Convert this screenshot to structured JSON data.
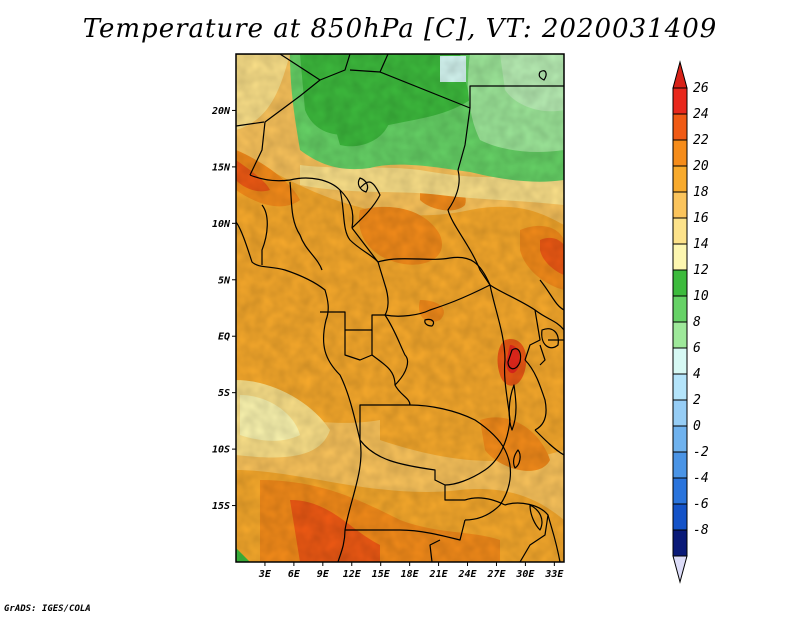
{
  "title": "Temperature at 850hPa [C], VT: 2020031409",
  "credit": "GrADS: IGES/COLA",
  "map": {
    "lat_range": [
      -20,
      25
    ],
    "lon_range": [
      0,
      34
    ],
    "lat_ticks": [
      {
        "value": 20,
        "label": "20N"
      },
      {
        "value": 15,
        "label": "15N"
      },
      {
        "value": 10,
        "label": "10N"
      },
      {
        "value": 5,
        "label": "5N"
      },
      {
        "value": 0,
        "label": "EQ"
      },
      {
        "value": -5,
        "label": "5S"
      },
      {
        "value": -10,
        "label": "10S"
      },
      {
        "value": -15,
        "label": "15S"
      }
    ],
    "lon_ticks": [
      {
        "value": 3,
        "label": "3E"
      },
      {
        "value": 6,
        "label": "6E"
      },
      {
        "value": 9,
        "label": "9E"
      },
      {
        "value": 12,
        "label": "12E"
      },
      {
        "value": 15,
        "label": "15E"
      },
      {
        "value": 18,
        "label": "18E"
      },
      {
        "value": 21,
        "label": "21E"
      },
      {
        "value": 24,
        "label": "24E"
      },
      {
        "value": 27,
        "label": "27E"
      },
      {
        "value": 30,
        "label": "30E"
      },
      {
        "value": 33,
        "label": "33E"
      }
    ]
  },
  "colorbar": {
    "levels": [
      {
        "label": "26",
        "color": "#e8281c"
      },
      {
        "label": "24",
        "color": "#f05a14"
      },
      {
        "label": "22",
        "color": "#f58c1a"
      },
      {
        "label": "20",
        "color": "#f8aa2c"
      },
      {
        "label": "18",
        "color": "#fbc45c"
      },
      {
        "label": "16",
        "color": "#fde28a"
      },
      {
        "label": "14",
        "color": "#fdf6b0"
      },
      {
        "label": "12",
        "color": "#3dbb3d"
      },
      {
        "label": "10",
        "color": "#66d266"
      },
      {
        "label": "8",
        "color": "#9ee89a"
      },
      {
        "label": "6",
        "color": "#d7f9f4"
      },
      {
        "label": "4",
        "color": "#b4e4fa"
      },
      {
        "label": "2",
        "color": "#96cdf5"
      },
      {
        "label": "0",
        "color": "#6fb2ee"
      },
      {
        "label": "-2",
        "color": "#4a94e6"
      },
      {
        "label": "-4",
        "color": "#2a74dc"
      },
      {
        "label": "-6",
        "color": "#1453c8"
      },
      {
        "label": "-8",
        "color": "#0c2f9c"
      }
    ],
    "below_color": "#dcdcf8",
    "top_arrow_color": "#d82218",
    "bottom_rect_color": "#0a1a78"
  }
}
